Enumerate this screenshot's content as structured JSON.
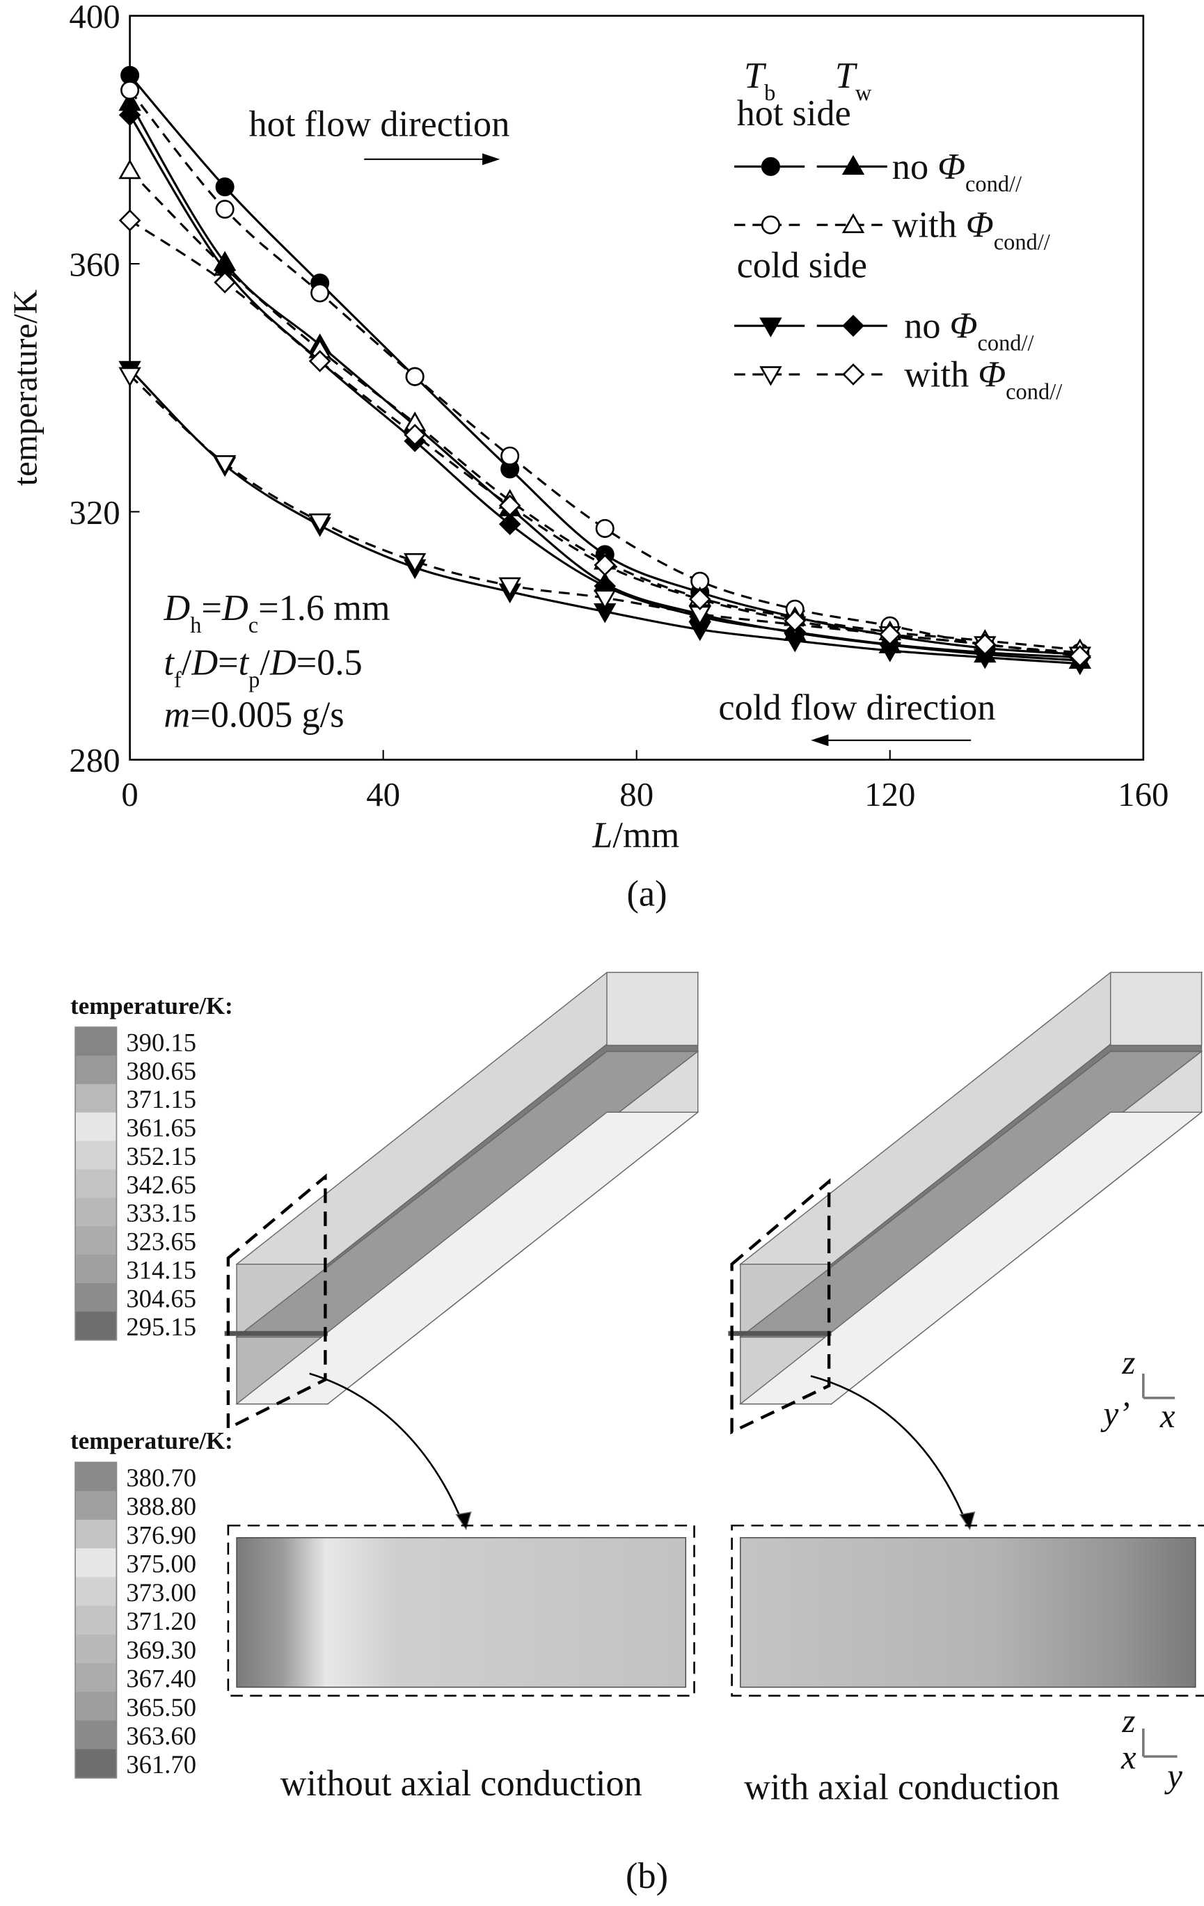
{
  "chart_data": {
    "type": "line",
    "xlabel": [
      {
        "t": "L",
        "s": "i"
      },
      {
        "t": "/mm"
      }
    ],
    "ylabel": "temperature/K",
    "x": [
      0,
      15,
      30,
      45,
      60,
      75,
      90,
      105,
      120,
      135,
      150
    ],
    "xlim": [
      0,
      160
    ],
    "ylim": [
      280,
      400
    ],
    "xticks": [
      0,
      40,
      80,
      120,
      160
    ],
    "yticks": [
      280,
      320,
      360,
      400
    ],
    "series": [
      {
        "color": "#000",
        "linestyle": "solid",
        "marker": "circle",
        "fill": "filled",
        "values": [
          390.4,
          372.4,
          356.9,
          341.8,
          326.9,
          313.1,
          307,
          303,
          300,
          298,
          297
        ]
      },
      {
        "color": "#000",
        "linestyle": "solid",
        "marker": "triangle-up",
        "fill": "filled",
        "values": [
          386,
          360.2,
          346.9,
          333.9,
          320.6,
          308.4,
          303.5,
          300.5,
          298.5,
          297,
          296
        ]
      },
      {
        "color": "#000",
        "linestyle": "dashed",
        "marker": "circle",
        "fill": "open",
        "values": [
          388,
          368.8,
          355.3,
          341.8,
          329,
          317.3,
          308.8,
          304.3,
          301.6,
          298.6,
          297.3
        ]
      },
      {
        "color": "#000",
        "linestyle": "dashed",
        "marker": "triangle-up",
        "fill": "open",
        "values": [
          375,
          359.4,
          346.1,
          334.3,
          321.8,
          312,
          306.1,
          302.9,
          300.6,
          299.2,
          297.7
        ]
      },
      {
        "color": "#000",
        "linestyle": "solid",
        "marker": "triangle-down",
        "fill": "filled",
        "values": [
          343,
          327.5,
          317.8,
          311,
          307.1,
          303.9,
          301,
          299.2,
          297.6,
          296.5,
          295.5
        ]
      },
      {
        "color": "#000",
        "linestyle": "solid",
        "marker": "diamond",
        "fill": "filled",
        "values": [
          384,
          359,
          344.3,
          331.4,
          318,
          308,
          303.1,
          300.6,
          298.6,
          297.3,
          296.5
        ]
      },
      {
        "color": "#000",
        "linestyle": "dashed",
        "marker": "triangle-down",
        "fill": "open",
        "values": [
          342,
          327.8,
          318.4,
          312,
          308.1,
          306.1,
          303.5,
          301.8,
          300.2,
          298.6,
          296.9
        ]
      },
      {
        "color": "#000",
        "linestyle": "dashed",
        "marker": "diamond",
        "fill": "open",
        "values": [
          367,
          357,
          344.3,
          332.4,
          321,
          311.4,
          305.9,
          302.4,
          300.2,
          298.6,
          296.7
        ]
      }
    ],
    "legend": {
      "columns": [
        [
          {
            "t": "T",
            "s": "i"
          },
          {
            "t": "b",
            "s": "sub"
          }
        ],
        [
          {
            "t": "T",
            "s": "i"
          },
          {
            "t": "w",
            "s": "sub"
          }
        ]
      ],
      "groups": [
        {
          "title": "hot side",
          "rows": [
            [
              {
                "t": "no "
              },
              {
                "t": "Φ",
                "s": "i"
              },
              {
                "t": "cond//",
                "s": "sub"
              }
            ],
            [
              {
                "t": "with "
              },
              {
                "t": "Φ",
                "s": "i"
              },
              {
                "t": "cond//",
                "s": "sub"
              }
            ]
          ]
        },
        {
          "title": "cold side",
          "rows": [
            [
              {
                "t": "no "
              },
              {
                "t": "Φ",
                "s": "i"
              },
              {
                "t": "cond//",
                "s": "sub"
              }
            ],
            [
              {
                "t": "with "
              },
              {
                "t": "Φ",
                "s": "i"
              },
              {
                "t": "cond//",
                "s": "sub"
              }
            ]
          ]
        }
      ]
    },
    "annotations": [
      [
        {
          "t": "hot flow direction"
        }
      ],
      [
        {
          "t": "cold flow direction"
        }
      ],
      [
        {
          "t": "D",
          "s": "i"
        },
        {
          "t": "h",
          "s": "sub"
        },
        {
          "t": "="
        },
        {
          "t": "D",
          "s": "i"
        },
        {
          "t": "c",
          "s": "sub"
        },
        {
          "t": "=1.6 mm"
        }
      ],
      [
        {
          "t": "t",
          "s": "i"
        },
        {
          "t": "f",
          "s": "sub"
        },
        {
          "t": "/"
        },
        {
          "t": "D",
          "s": "i"
        },
        {
          "t": "="
        },
        {
          "t": "t",
          "s": "i"
        },
        {
          "t": "p",
          "s": "sub"
        },
        {
          "t": "/"
        },
        {
          "t": "D",
          "s": "i"
        },
        {
          "t": "=0.5"
        }
      ],
      [
        {
          "t": "m",
          "s": "i"
        },
        {
          "t": "=0.005  g/s"
        }
      ]
    ],
    "caption": "(a)"
  },
  "figure_b": {
    "colorbars": [
      {
        "title": "temperature/K:",
        "labels": [
          "390.15",
          "380.65",
          "371.15",
          "361.65",
          "352.15",
          "342.65",
          "333.15",
          "323.65",
          "314.15",
          "304.65",
          "295.15"
        ],
        "colors": [
          "#858585",
          "#999999",
          "#b9b9b9",
          "#e6e6e6",
          "#d4d4d4",
          "#c4c4c4",
          "#b8b8b8",
          "#acacac",
          "#a0a0a0",
          "#8c8c8c",
          "#6e6e6e"
        ]
      },
      {
        "title": "temperature/K:",
        "labels": [
          "380.70",
          "388.80",
          "376.90",
          "375.00",
          "373.00",
          "371.20",
          "369.30",
          "367.40",
          "365.50",
          "363.60",
          "361.70"
        ],
        "colors": [
          "#8a8a8a",
          "#a0a0a0",
          "#c4c4c4",
          "#e6e6e6",
          "#d2d2d2",
          "#c4c4c4",
          "#b8b8b8",
          "#acacac",
          "#9e9e9e",
          "#8a8a8a",
          "#6e6e6e"
        ]
      }
    ],
    "captions": [
      "without axial conduction",
      "with axial conduction"
    ],
    "axes_top": [
      "z",
      "y’",
      "x"
    ],
    "axes_bottom": [
      "z",
      "x",
      "y"
    ],
    "label": "(b)"
  }
}
